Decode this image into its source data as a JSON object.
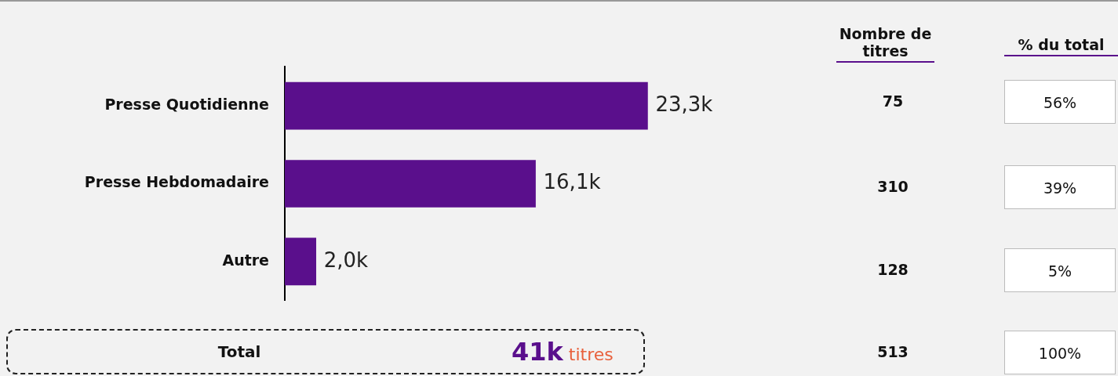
{
  "chart_data": {
    "type": "bar",
    "orientation": "horizontal",
    "categories": [
      "Presse Quotidienne",
      "Presse Hebdomadaire",
      "Autre"
    ],
    "values": [
      23.3,
      16.1,
      2.0
    ],
    "value_labels": [
      "23,3k",
      "16,1k",
      "2,0k"
    ],
    "color": "#5a0f8c",
    "annotations": [
      "Nombre de titres",
      "% du total",
      "75",
      "310",
      "128",
      "56%",
      "39%",
      "5%",
      "Total",
      "41k",
      "titres",
      "513",
      "100%"
    ],
    "tick_labels": "y"
  }
}
